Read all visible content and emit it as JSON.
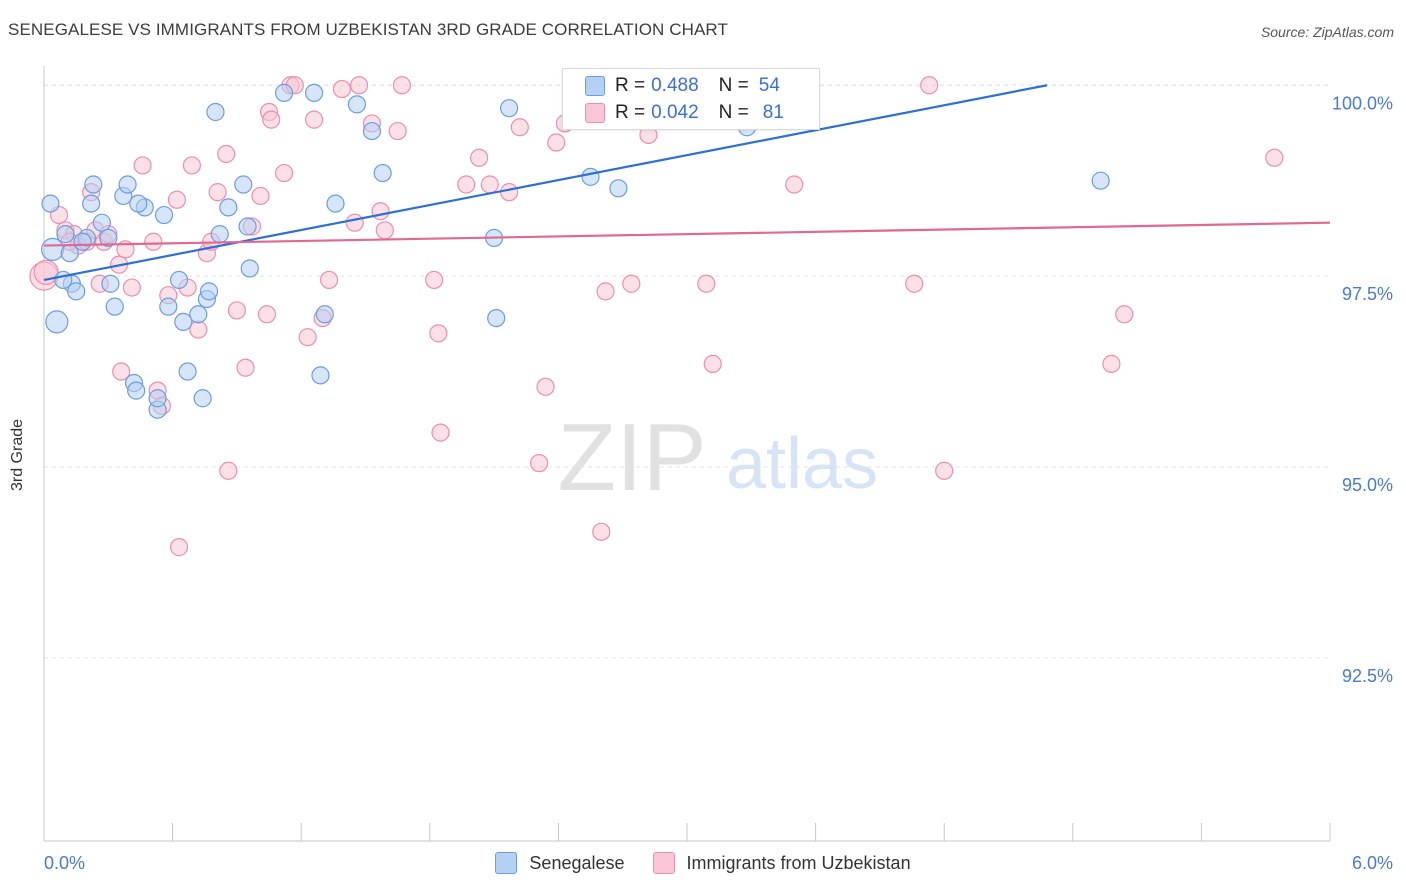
{
  "header": {
    "title": "SENEGALESE VS IMMIGRANTS FROM UZBEKISTAN 3RD GRADE CORRELATION CHART",
    "source": "Source: ZipAtlas.com"
  },
  "watermark": {
    "zip": "ZIP",
    "atlas": "atlas"
  },
  "stats_box": {
    "rows": [
      {
        "r_label": "R =",
        "r_value": "0.488",
        "n_label": "N =",
        "n_value": "54"
      },
      {
        "r_label": "R =",
        "r_value": "0.042",
        "n_label": "N =",
        "n_value": "81"
      }
    ]
  },
  "legend": {
    "items": [
      "Senegalese",
      "Immigrants from Uzbekistan"
    ]
  },
  "colors": {
    "blue_fill": "#b5d0f2",
    "blue_stroke": "#6d9de0",
    "blue_line": "#2d6fd2",
    "pink_fill": "#f8c6d6",
    "pink_stroke": "#eb8fae",
    "pink_line": "#e06892",
    "tick_label": "#4a7ac8",
    "grid": "#e3e3e3"
  },
  "chart_data": {
    "type": "scatter",
    "title": "SENEGALESE VS IMMIGRANTS FROM UZBEKISTAN 3RD GRADE CORRELATION CHART",
    "xlabel": "",
    "ylabel": "3rd Grade",
    "xlim": [
      0,
      6
    ],
    "ylim": [
      90.1,
      100.2
    ],
    "x_tick_labels": [
      "0.0%",
      "6.0%"
    ],
    "y_ticks": [
      92.5,
      95.0,
      97.5,
      100.0
    ],
    "y_tick_labels": [
      "92.5%",
      "95.0%",
      "97.5%",
      "100.0%"
    ],
    "grid": true,
    "legend_position": "bottom",
    "series": [
      {
        "name": "Senegalese",
        "color": "#6d9de0",
        "r": 0.488,
        "n": 54,
        "trend": {
          "x": [
            0.0,
            4.68
          ],
          "y": [
            97.45,
            100.0
          ]
        },
        "points": [
          [
            0.04,
            97.85
          ],
          [
            0.06,
            96.9
          ],
          [
            0.12,
            97.8
          ],
          [
            0.2,
            98.0
          ],
          [
            0.13,
            97.4
          ],
          [
            0.23,
            98.7
          ],
          [
            0.22,
            98.45
          ],
          [
            0.27,
            98.2
          ],
          [
            0.3,
            98.0
          ],
          [
            0.31,
            97.4
          ],
          [
            0.33,
            97.1
          ],
          [
            0.37,
            98.55
          ],
          [
            0.39,
            98.7
          ],
          [
            0.42,
            96.1
          ],
          [
            0.43,
            96.0
          ],
          [
            0.47,
            98.4
          ],
          [
            0.53,
            95.75
          ],
          [
            0.53,
            95.9
          ],
          [
            0.56,
            98.3
          ],
          [
            0.58,
            97.1
          ],
          [
            0.63,
            97.45
          ],
          [
            0.65,
            96.9
          ],
          [
            0.67,
            96.25
          ],
          [
            0.72,
            97.0
          ],
          [
            0.74,
            95.9
          ],
          [
            0.76,
            97.2
          ],
          [
            0.77,
            97.3
          ],
          [
            0.8,
            99.65
          ],
          [
            0.82,
            98.05
          ],
          [
            0.86,
            98.4
          ],
          [
            0.93,
            98.7
          ],
          [
            0.95,
            98.15
          ],
          [
            0.96,
            97.6
          ],
          [
            1.12,
            99.9
          ],
          [
            1.26,
            99.9
          ],
          [
            1.31,
            97.0
          ],
          [
            1.29,
            96.2
          ],
          [
            1.36,
            98.45
          ],
          [
            1.46,
            99.75
          ],
          [
            1.53,
            99.4
          ],
          [
            1.58,
            98.85
          ],
          [
            2.1,
            98.0
          ],
          [
            2.11,
            96.95
          ],
          [
            2.17,
            99.7
          ],
          [
            2.55,
            98.8
          ],
          [
            2.68,
            98.65
          ],
          [
            3.28,
            99.45
          ],
          [
            4.93,
            98.75
          ],
          [
            0.03,
            98.45
          ],
          [
            0.09,
            97.45
          ],
          [
            0.1,
            98.05
          ],
          [
            0.15,
            97.3
          ],
          [
            0.18,
            97.95
          ],
          [
            0.44,
            98.45
          ]
        ]
      },
      {
        "name": "Immigrants from Uzbekistan",
        "color": "#eb8fae",
        "r": 0.042,
        "n": 81,
        "trend": {
          "x": [
            0.0,
            6.0
          ],
          "y": [
            97.9,
            98.2
          ]
        },
        "points": [
          [
            0.0,
            97.5
          ],
          [
            0.07,
            98.3
          ],
          [
            0.1,
            98.1
          ],
          [
            0.14,
            98.05
          ],
          [
            0.16,
            97.9
          ],
          [
            0.2,
            97.95
          ],
          [
            0.22,
            98.6
          ],
          [
            0.24,
            98.1
          ],
          [
            0.28,
            97.95
          ],
          [
            0.3,
            98.05
          ],
          [
            0.35,
            97.65
          ],
          [
            0.38,
            97.85
          ],
          [
            0.36,
            96.25
          ],
          [
            0.41,
            97.35
          ],
          [
            0.46,
            98.95
          ],
          [
            0.51,
            97.95
          ],
          [
            0.53,
            96.0
          ],
          [
            0.55,
            95.8
          ],
          [
            0.58,
            97.25
          ],
          [
            0.62,
            98.5
          ],
          [
            0.63,
            93.95
          ],
          [
            0.67,
            97.35
          ],
          [
            0.69,
            98.95
          ],
          [
            0.72,
            96.8
          ],
          [
            0.76,
            97.8
          ],
          [
            0.78,
            97.95
          ],
          [
            0.81,
            98.6
          ],
          [
            0.85,
            99.1
          ],
          [
            0.86,
            94.95
          ],
          [
            0.9,
            97.05
          ],
          [
            0.94,
            96.3
          ],
          [
            0.97,
            98.15
          ],
          [
            1.01,
            98.55
          ],
          [
            1.04,
            97.0
          ],
          [
            1.05,
            99.65
          ],
          [
            1.06,
            99.55
          ],
          [
            1.12,
            98.85
          ],
          [
            1.15,
            100.0
          ],
          [
            1.17,
            100.0
          ],
          [
            1.23,
            96.7
          ],
          [
            1.26,
            99.55
          ],
          [
            1.3,
            96.95
          ],
          [
            1.33,
            97.45
          ],
          [
            1.39,
            99.95
          ],
          [
            1.45,
            98.2
          ],
          [
            1.47,
            100.0
          ],
          [
            1.53,
            99.5
          ],
          [
            1.57,
            98.35
          ],
          [
            1.59,
            98.1
          ],
          [
            1.65,
            99.4
          ],
          [
            1.67,
            100.0
          ],
          [
            1.82,
            97.45
          ],
          [
            1.84,
            96.75
          ],
          [
            1.85,
            95.45
          ],
          [
            1.97,
            98.7
          ],
          [
            2.03,
            99.05
          ],
          [
            2.08,
            98.7
          ],
          [
            2.17,
            98.6
          ],
          [
            2.22,
            99.45
          ],
          [
            2.31,
            95.05
          ],
          [
            2.34,
            96.05
          ],
          [
            2.39,
            99.25
          ],
          [
            2.43,
            99.5
          ],
          [
            2.6,
            94.15
          ],
          [
            2.62,
            97.3
          ],
          [
            2.74,
            97.4
          ],
          [
            2.82,
            99.35
          ],
          [
            2.95,
            99.65
          ],
          [
            3.09,
            97.4
          ],
          [
            3.12,
            96.35
          ],
          [
            3.5,
            98.7
          ],
          [
            3.35,
            100.0
          ],
          [
            4.06,
            97.4
          ],
          [
            4.13,
            100.0
          ],
          [
            4.2,
            94.95
          ],
          [
            4.98,
            96.35
          ],
          [
            5.04,
            97.0
          ],
          [
            5.74,
            99.05
          ],
          [
            0.01,
            97.55
          ],
          [
            0.12,
            97.95
          ],
          [
            0.26,
            97.4
          ]
        ]
      }
    ]
  }
}
